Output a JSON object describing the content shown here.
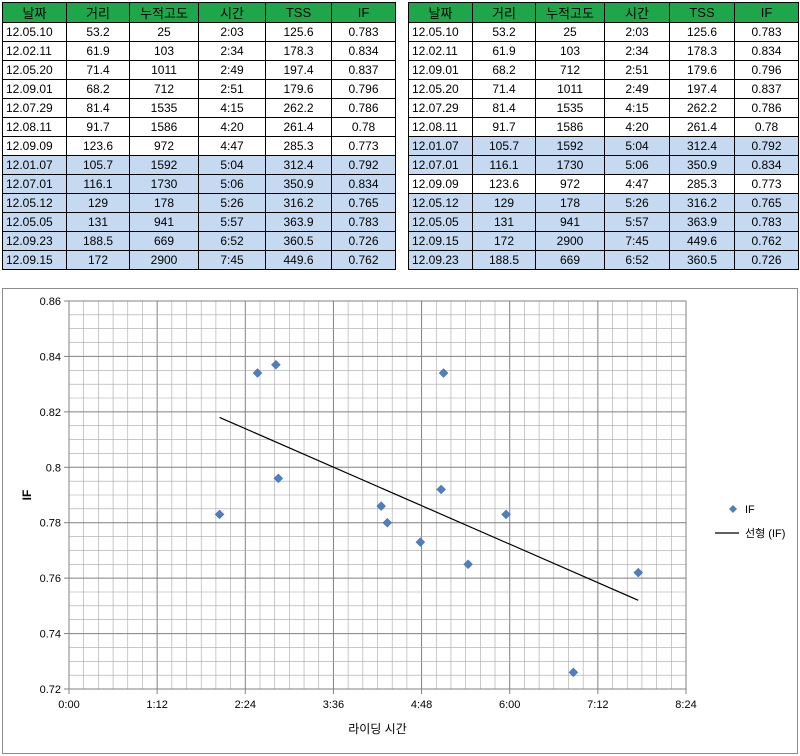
{
  "tables": [
    {
      "name": "left",
      "headers": [
        "날짜",
        "거리",
        "누적고도",
        "시간",
        "TSS",
        "IF"
      ],
      "rows": [
        {
          "cells": [
            "12.05.10",
            "53.2",
            "25",
            "2:03",
            "125.6",
            "0.783"
          ],
          "highlight": false
        },
        {
          "cells": [
            "12.02.11",
            "61.9",
            "103",
            "2:34",
            "178.3",
            "0.834"
          ],
          "highlight": false
        },
        {
          "cells": [
            "12.05.20",
            "71.4",
            "1011",
            "2:49",
            "197.4",
            "0.837"
          ],
          "highlight": false
        },
        {
          "cells": [
            "12.09.01",
            "68.2",
            "712",
            "2:51",
            "179.6",
            "0.796"
          ],
          "highlight": false
        },
        {
          "cells": [
            "12.07.29",
            "81.4",
            "1535",
            "4:15",
            "262.2",
            "0.786"
          ],
          "highlight": false
        },
        {
          "cells": [
            "12.08.11",
            "91.7",
            "1586",
            "4:20",
            "261.4",
            "0.78"
          ],
          "highlight": false
        },
        {
          "cells": [
            "12.09.09",
            "123.6",
            "972",
            "4:47",
            "285.3",
            "0.773"
          ],
          "highlight": false
        },
        {
          "cells": [
            "12.01.07",
            "105.7",
            "1592",
            "5:04",
            "312.4",
            "0.792"
          ],
          "highlight": true
        },
        {
          "cells": [
            "12.07.01",
            "116.1",
            "1730",
            "5:06",
            "350.9",
            "0.834"
          ],
          "highlight": true
        },
        {
          "cells": [
            "12.05.12",
            "129",
            "178",
            "5:26",
            "316.2",
            "0.765"
          ],
          "highlight": true
        },
        {
          "cells": [
            "12.05.05",
            "131",
            "941",
            "5:57",
            "363.9",
            "0.783"
          ],
          "highlight": true
        },
        {
          "cells": [
            "12.09.23",
            "188.5",
            "669",
            "6:52",
            "360.5",
            "0.726"
          ],
          "highlight": true
        },
        {
          "cells": [
            "12.09.15",
            "172",
            "2900",
            "7:45",
            "449.6",
            "0.762"
          ],
          "highlight": true
        }
      ]
    },
    {
      "name": "right",
      "headers": [
        "날짜",
        "거리",
        "누적고도",
        "시간",
        "TSS",
        "IF"
      ],
      "rows": [
        {
          "cells": [
            "12.05.10",
            "53.2",
            "25",
            "2:03",
            "125.6",
            "0.783"
          ],
          "highlight": false
        },
        {
          "cells": [
            "12.02.11",
            "61.9",
            "103",
            "2:34",
            "178.3",
            "0.834"
          ],
          "highlight": false
        },
        {
          "cells": [
            "12.09.01",
            "68.2",
            "712",
            "2:51",
            "179.6",
            "0.796"
          ],
          "highlight": false
        },
        {
          "cells": [
            "12.05.20",
            "71.4",
            "1011",
            "2:49",
            "197.4",
            "0.837"
          ],
          "highlight": false
        },
        {
          "cells": [
            "12.07.29",
            "81.4",
            "1535",
            "4:15",
            "262.2",
            "0.786"
          ],
          "highlight": false
        },
        {
          "cells": [
            "12.08.11",
            "91.7",
            "1586",
            "4:20",
            "261.4",
            "0.78"
          ],
          "highlight": false
        },
        {
          "cells": [
            "12.01.07",
            "105.7",
            "1592",
            "5:04",
            "312.4",
            "0.792"
          ],
          "highlight": true
        },
        {
          "cells": [
            "12.07.01",
            "116.1",
            "1730",
            "5:06",
            "350.9",
            "0.834"
          ],
          "highlight": true
        },
        {
          "cells": [
            "12.09.09",
            "123.6",
            "972",
            "4:47",
            "285.3",
            "0.773"
          ],
          "highlight": false
        },
        {
          "cells": [
            "12.05.12",
            "129",
            "178",
            "5:26",
            "316.2",
            "0.765"
          ],
          "highlight": true
        },
        {
          "cells": [
            "12.05.05",
            "131",
            "941",
            "5:57",
            "363.9",
            "0.783"
          ],
          "highlight": true
        },
        {
          "cells": [
            "12.09.15",
            "172",
            "2900",
            "7:45",
            "449.6",
            "0.762"
          ],
          "highlight": true
        },
        {
          "cells": [
            "12.09.23",
            "188.5",
            "669",
            "6:52",
            "360.5",
            "0.726"
          ],
          "highlight": true
        }
      ]
    }
  ],
  "colors": {
    "header_green": "#1fa64a",
    "highlight_blue": "#c5d9f1",
    "marker": "#4f7fbf",
    "trendline": "#000000",
    "grid": "#a6a6a6"
  },
  "chart_data": {
    "type": "scatter",
    "xlabel": "라이딩 시간",
    "ylabel": "IF",
    "xlim_minutes": [
      0,
      504
    ],
    "xticks": [
      {
        "minutes": 0,
        "label": "0:00"
      },
      {
        "minutes": 72,
        "label": "1:12"
      },
      {
        "minutes": 144,
        "label": "2:24"
      },
      {
        "minutes": 216,
        "label": "3:36"
      },
      {
        "minutes": 288,
        "label": "4:48"
      },
      {
        "minutes": 360,
        "label": "6:00"
      },
      {
        "minutes": 432,
        "label": "7:12"
      },
      {
        "minutes": 504,
        "label": "8:24"
      }
    ],
    "ylim": [
      0.72,
      0.86
    ],
    "yticks": [
      {
        "value": 0.72,
        "label": "0.72"
      },
      {
        "value": 0.74,
        "label": "0.74"
      },
      {
        "value": 0.76,
        "label": "0.76"
      },
      {
        "value": 0.78,
        "label": "0.78"
      },
      {
        "value": 0.8,
        "label": "0.8"
      },
      {
        "value": 0.82,
        "label": "0.82"
      },
      {
        "value": 0.84,
        "label": "0.84"
      },
      {
        "value": 0.86,
        "label": "0.86"
      }
    ],
    "grid": true,
    "legend_position": "right",
    "series": [
      {
        "name": "IF",
        "kind": "points",
        "x_minutes": [
          123,
          154,
          169,
          171,
          255,
          260,
          287,
          304,
          306,
          326,
          357,
          412,
          465
        ],
        "y": [
          0.783,
          0.834,
          0.837,
          0.796,
          0.786,
          0.78,
          0.773,
          0.792,
          0.834,
          0.765,
          0.783,
          0.726,
          0.762
        ]
      },
      {
        "name": "선형 (IF)",
        "kind": "trendline",
        "x_minutes": [
          123,
          465
        ],
        "y": [
          0.818,
          0.752
        ]
      }
    ]
  }
}
